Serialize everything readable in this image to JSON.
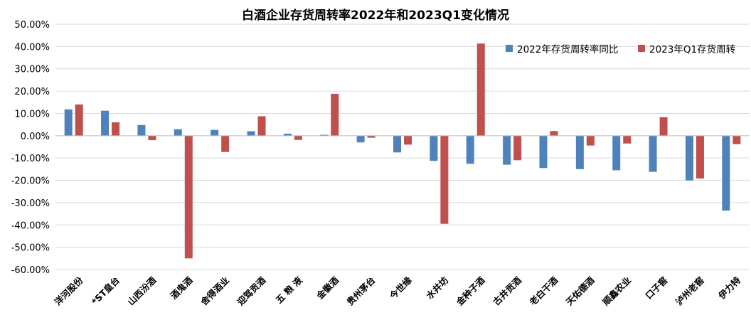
{
  "chart_data": {
    "type": "bar",
    "title": "白酒企业存货周转率2022年和2023Q1变化情况",
    "categories": [
      "洋河股份",
      "*ST皇台",
      "山西汾酒",
      "酒鬼酒",
      "舍得酒业",
      "迎驾贡酒",
      "五 粮 液",
      "金徽酒",
      "贵州茅台",
      "今世缘",
      "水井坊",
      "金种子酒",
      "古井贡酒",
      "老白干酒",
      "天佑德酒",
      "顺鑫农业",
      "口子窖",
      "泸州老窖",
      "伊力特"
    ],
    "series": [
      {
        "name": "2022年存货周转率同比",
        "color": "#4F81BD",
        "values": [
          11.8,
          11.2,
          4.8,
          2.9,
          2.6,
          2.0,
          0.9,
          0.4,
          -3.0,
          -7.5,
          -11.3,
          -12.6,
          -13.0,
          -14.5,
          -15.0,
          -15.5,
          -16.2,
          -20.1,
          -33.6
        ]
      },
      {
        "name": "2023年Q1存货周转",
        "color": "#C0504D",
        "values": [
          14.0,
          6.0,
          -2.0,
          -55.0,
          -7.3,
          8.7,
          -1.9,
          18.8,
          -0.9,
          -4.0,
          -39.5,
          41.3,
          -11.0,
          2.1,
          -4.4,
          -3.5,
          8.3,
          -19.2,
          -3.8
        ]
      }
    ],
    "ylim": [
      -60,
      50
    ],
    "yticks": [
      50,
      40,
      30,
      20,
      10,
      0,
      -10,
      -20,
      -30,
      -40,
      -50,
      -60
    ],
    "ytick_labels": [
      "50.00%",
      "40.00%",
      "30.00%",
      "20.00%",
      "10.00%",
      "0.00%",
      "-10.00%",
      "-20.00%",
      "-30.00%",
      "-40.00%",
      "-50.00%",
      "-60.00%"
    ],
    "grid": true,
    "legend_position": "top-right",
    "xlabel": "",
    "ylabel": ""
  }
}
